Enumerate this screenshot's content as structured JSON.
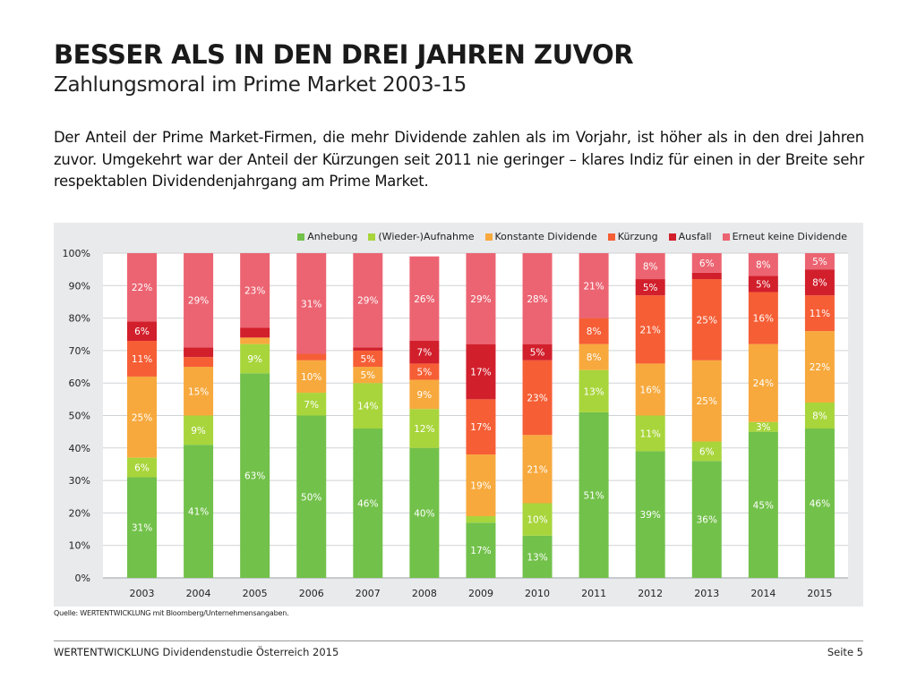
{
  "header": {
    "title": "BESSER ALS IN DEN DREI JAHREN ZUVOR",
    "subtitle": "Zahlungsmoral im Prime Market 2003-15"
  },
  "intro": "Der Anteil der Prime Market-Firmen, die mehr Dividende zahlen als im Vorjahr, ist höher als in den drei Jahren zuvor. Umgekehrt war der Anteil der Kürzungen seit 2011 nie geringer – klares Indiz für einen in der Breite sehr respektablen Dividendenjahrgang am Prime Market.",
  "source": "Quelle: WERTENTWICKLUNG mit Bloomberg/Unternehmensangaben.",
  "footer": {
    "left": "WERTENTWICKLUNG Dividendenstudie Österreich 2015",
    "right": "Seite 5"
  },
  "chart_data": {
    "type": "bar",
    "stacked": true,
    "title": "",
    "xlabel": "",
    "ylabel": "",
    "ylim": [
      0,
      100
    ],
    "yticks": [
      "0%",
      "10%",
      "20%",
      "30%",
      "40%",
      "50%",
      "60%",
      "70%",
      "80%",
      "90%",
      "100%"
    ],
    "grid": true,
    "legend_position": "top-right",
    "categories": [
      "2003",
      "2004",
      "2005",
      "2006",
      "2007",
      "2008",
      "2009",
      "2010",
      "2011",
      "2012",
      "2013",
      "2014",
      "2015"
    ],
    "series": [
      {
        "name": "Anhebung",
        "color": "#72c14a",
        "values": [
          31,
          41,
          63,
          50,
          46,
          40,
          17,
          13,
          51,
          39,
          36,
          45,
          46
        ],
        "labels": [
          "31%",
          "41%",
          "63%",
          "50%",
          "46%",
          "40%",
          "17%",
          "13%",
          "51%",
          "39%",
          "36%",
          "45%",
          "46%"
        ]
      },
      {
        "name": "(Wieder-)Aufnahme",
        "color": "#a8d53b",
        "values": [
          6,
          9,
          9,
          7,
          14,
          12,
          2,
          10,
          13,
          11,
          6,
          3,
          8
        ],
        "labels": [
          "6%",
          "9%",
          "9%",
          "7%",
          "14%",
          "12%",
          "",
          "10%",
          "13%",
          "11%",
          "6%",
          "3%",
          "8%"
        ]
      },
      {
        "name": "Konstante Dividende",
        "color": "#f7a93d",
        "values": [
          25,
          15,
          2,
          10,
          5,
          9,
          19,
          21,
          8,
          16,
          25,
          24,
          22
        ],
        "labels": [
          "25%",
          "15%",
          "",
          "10%",
          "5%",
          "9%",
          "19%",
          "21%",
          "8%",
          "16%",
          "25%",
          "24%",
          "22%"
        ]
      },
      {
        "name": "Kürzung",
        "color": "#f65e35",
        "values": [
          11,
          3,
          0,
          2,
          5,
          5,
          17,
          23,
          8,
          21,
          25,
          16,
          11
        ],
        "labels": [
          "11%",
          "",
          "",
          "",
          "5%",
          "5%",
          "17%",
          "23%",
          "8%",
          "21%",
          "25%",
          "16%",
          "11%"
        ]
      },
      {
        "name": "Ausfall",
        "color": "#d21f2c",
        "values": [
          6,
          3,
          3,
          0,
          1,
          7,
          17,
          5,
          0,
          5,
          2,
          5,
          8
        ],
        "labels": [
          "6%",
          "",
          "",
          "",
          "",
          "7%",
          "17%",
          "5%",
          "",
          "5%",
          "",
          "5%",
          "8%"
        ]
      },
      {
        "name": "Erneut keine Dividende",
        "color": "#ec6472",
        "values": [
          22,
          29,
          23,
          31,
          29,
          26,
          29,
          28,
          21,
          8,
          6,
          8,
          5
        ],
        "labels": [
          "22%",
          "29%",
          "23%",
          "31%",
          "29%",
          "26%",
          "29%",
          "28%",
          "21%",
          "8%",
          "6%",
          "8%",
          "5%"
        ]
      }
    ]
  }
}
